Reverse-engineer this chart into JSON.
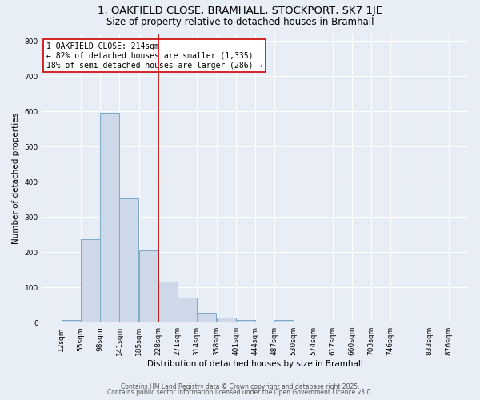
{
  "title1": "1, OAKFIELD CLOSE, BRAMHALL, STOCKPORT, SK7 1JE",
  "title2": "Size of property relative to detached houses in Bramhall",
  "xlabel": "Distribution of detached houses by size in Bramhall",
  "ylabel": "Number of detached properties",
  "annotation_line1": "1 OAKFIELD CLOSE: 214sqm",
  "annotation_line2": "← 82% of detached houses are smaller (1,335)",
  "annotation_line3": "18% of semi-detached houses are larger (286) →",
  "footnote1": "Contains HM Land Registry data © Crown copyright and database right 2025.",
  "footnote2": "Contains public sector information licensed under the Open Government Licence v3.0.",
  "bar_color": "#cdd9e8",
  "bar_edge_color": "#7aaac8",
  "line_color": "#cc0000",
  "annotation_box_color": "#cc0000",
  "background_color": "#e8eef5",
  "grid_color": "#ffffff",
  "bins": [
    12,
    55,
    98,
    141,
    185,
    228,
    271,
    314,
    358,
    401,
    444,
    487,
    530,
    574,
    617,
    660,
    703,
    746,
    833,
    876
  ],
  "counts": [
    8,
    238,
    595,
    353,
    206,
    116,
    72,
    27,
    14,
    8,
    0,
    7,
    0,
    0,
    0,
    0,
    0,
    0,
    0
  ],
  "tick_labels": [
    "12sqm",
    "55sqm",
    "98sqm",
    "141sqm",
    "185sqm",
    "228sqm",
    "271sqm",
    "314sqm",
    "358sqm",
    "401sqm",
    "444sqm",
    "487sqm",
    "530sqm",
    "574sqm",
    "617sqm",
    "660sqm",
    "703sqm",
    "746sqm",
    "833sqm",
    "876sqm"
  ],
  "property_line_x": 228,
  "ylim": [
    0,
    820
  ],
  "yticks": [
    0,
    100,
    200,
    300,
    400,
    500,
    600,
    700,
    800
  ],
  "title1_fontsize": 9.5,
  "title2_fontsize": 8.5,
  "axis_label_fontsize": 7.5,
  "tick_fontsize": 6.5,
  "annotation_fontsize": 7,
  "footnote_fontsize": 5.5
}
